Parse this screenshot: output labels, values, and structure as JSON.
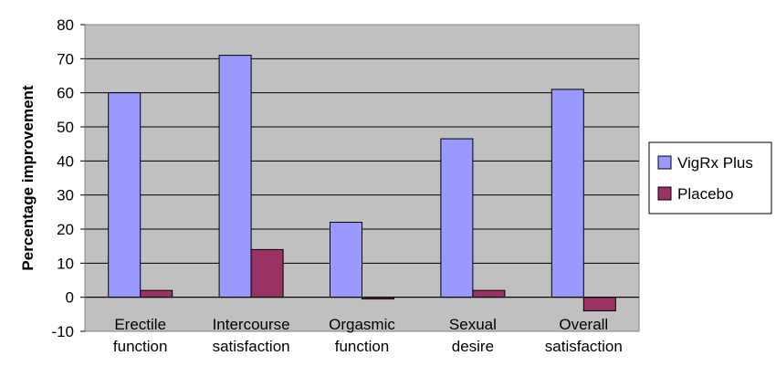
{
  "chart_data": {
    "type": "bar",
    "title": "",
    "xlabel": "",
    "ylabel": "Percentage improvement",
    "ylim": [
      -10,
      80
    ],
    "yticks": [
      -10,
      0,
      10,
      20,
      30,
      40,
      50,
      60,
      70,
      80
    ],
    "grid": true,
    "legend_position": "right",
    "categories": [
      [
        "Erectile",
        "function"
      ],
      [
        "Intercourse",
        "satisfaction"
      ],
      [
        "Orgasmic",
        "function"
      ],
      [
        "Sexual",
        "desire"
      ],
      [
        "Overall",
        "satisfaction"
      ]
    ],
    "series": [
      {
        "name": "VigRx Plus",
        "color": "#9999ff",
        "values": [
          60,
          71,
          22,
          46.5,
          61
        ]
      },
      {
        "name": "Placebo",
        "color": "#993366",
        "values": [
          2,
          14,
          -0.5,
          2,
          -4
        ]
      }
    ],
    "plot_background": "#c0c0c0"
  }
}
